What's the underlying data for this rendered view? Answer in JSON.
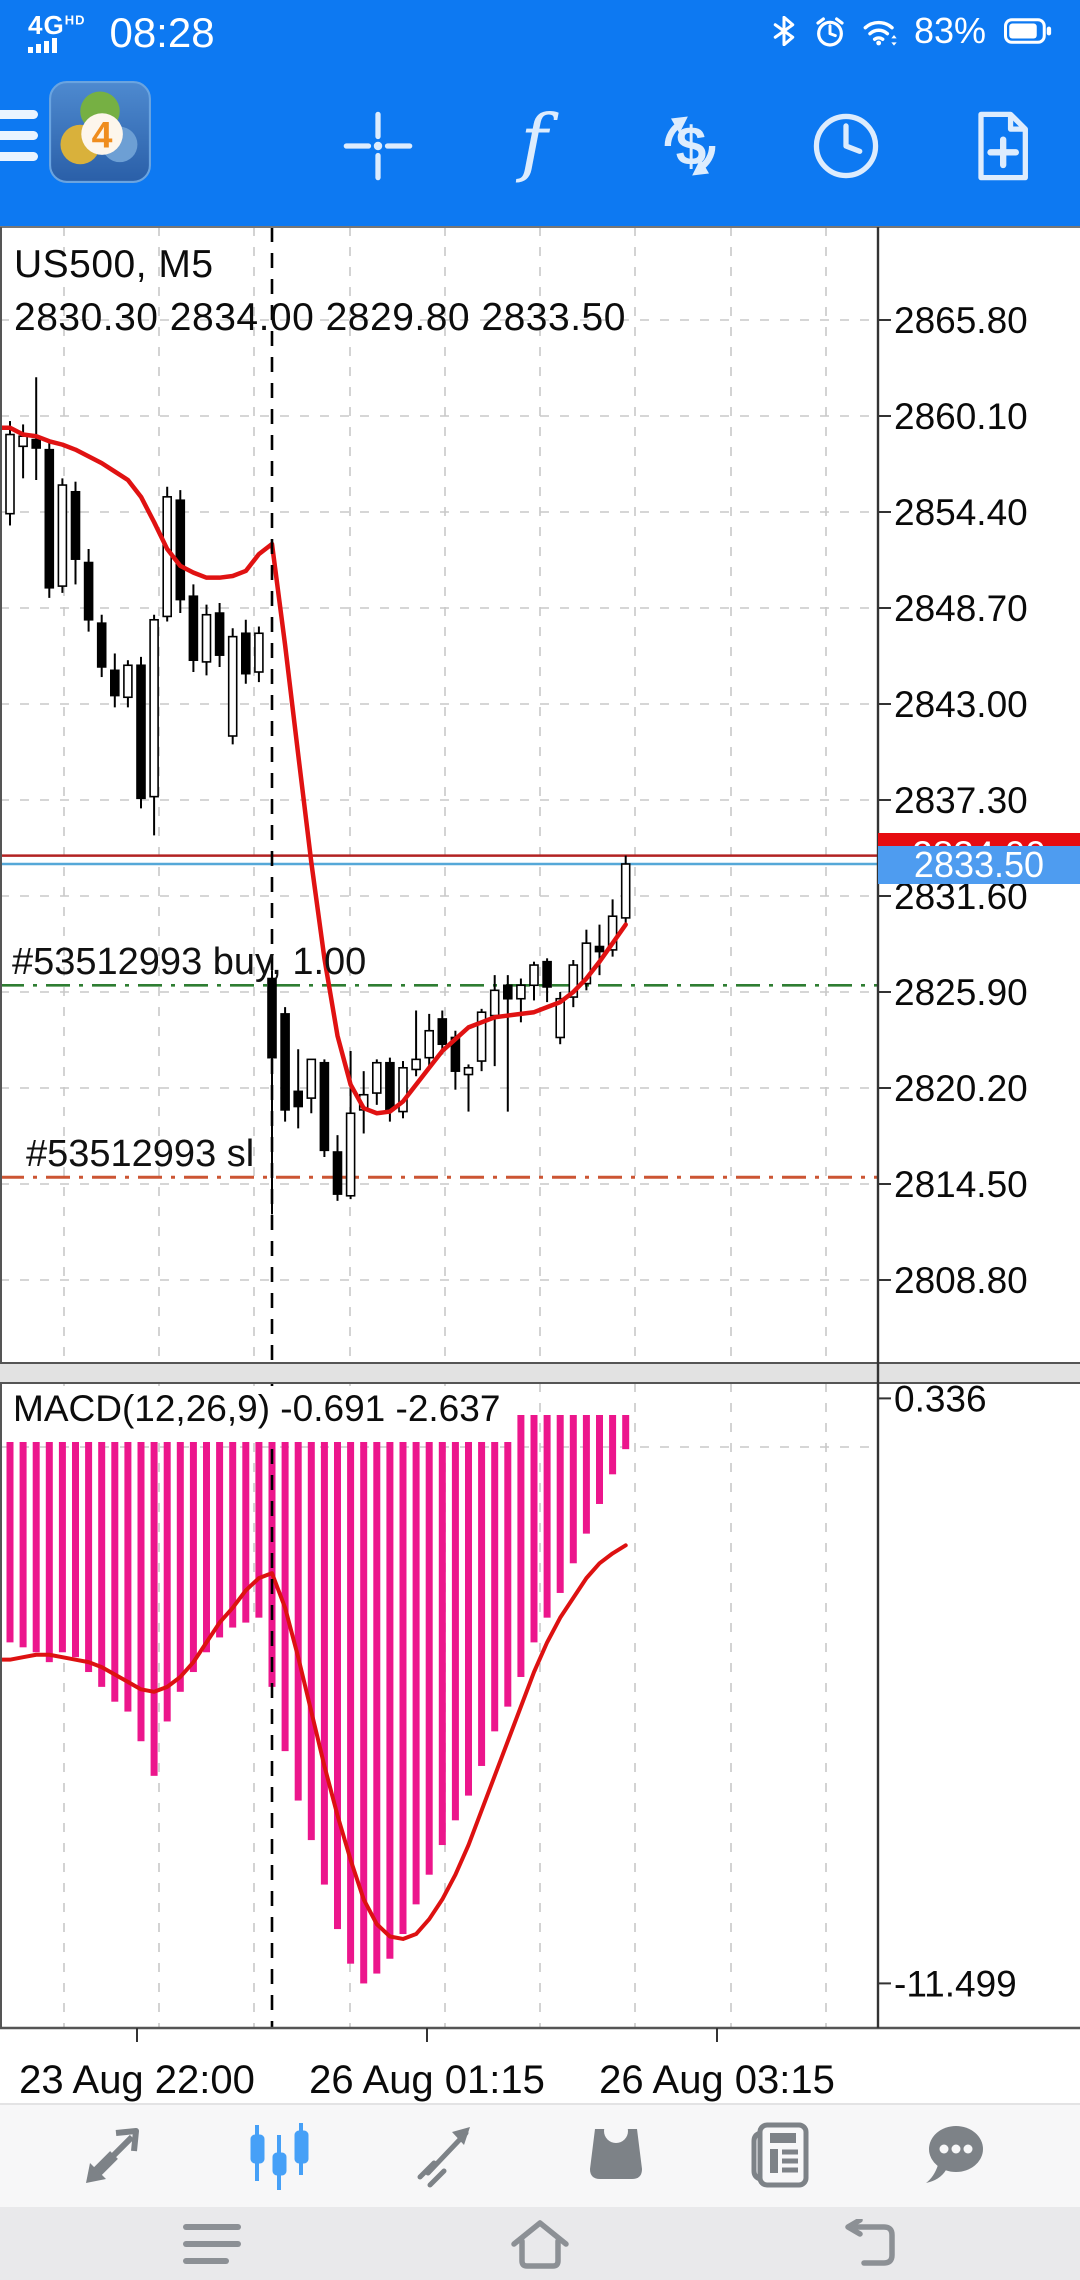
{
  "status_bar": {
    "network": "4G",
    "network_badge": "HD",
    "time": "08:28",
    "battery_pct": "83%",
    "icons": [
      "signal-icon",
      "bluetooth-icon",
      "alarm-icon",
      "wifi-icon",
      "battery-icon"
    ]
  },
  "app_toolbar": {
    "icons": [
      "menu-icon",
      "mt4-logo",
      "crosshair-icon",
      "indicators-icon",
      "trade-symbols-icon",
      "timeframes-icon",
      "new-order-icon"
    ]
  },
  "chart_header": {
    "symbol": "US500, M5",
    "ohlc": "2830.30 2834.00 2829.80 2833.50"
  },
  "price_tags": {
    "ask": "2834.00",
    "bid": "2833.50"
  },
  "trade_lines": {
    "buy_label": "#53512993 buy, 1.00",
    "sl_label": "#53512993 sl"
  },
  "macd_header": "MACD(12,26,9) -0.691 -2.637",
  "time_axis": [
    "23 Aug 22:00",
    "26 Aug 01:15",
    "26 Aug 03:15"
  ],
  "bottom_toolbar": {
    "icons": [
      "quotes-icon",
      "charts-icon",
      "trade-icon",
      "history-icon",
      "news-icon",
      "messages-icon"
    ],
    "active": "charts-icon"
  },
  "nav_bar": {
    "icons": [
      "recents-icon",
      "home-icon",
      "back-icon"
    ]
  },
  "colors": {
    "accent_blue": "#0d79f2",
    "icon_white": "#e8f3fe",
    "bear": "#000000",
    "bull": "#ffffff",
    "ma_red": "#e01212",
    "macd_bar": "#ec168c",
    "macd_signal": "#dd1111",
    "bid_line": "#55a8d8",
    "ask_line": "#b22222",
    "buy_line": "#2e7d32",
    "sl_line": "#cc5533",
    "bid_tag": "#4e9cf0",
    "ask_tag": "#e60c10",
    "grid": "#c8c8c8",
    "active_icon": "#46a0f7",
    "gray_icon": "#7d8287",
    "nav_icon": "#8c9095"
  },
  "chart_data": [
    {
      "type": "candlestick",
      "symbol": "US500",
      "timeframe": "M5",
      "title": "US500, M5",
      "last_ohlc": {
        "open": 2830.3,
        "high": 2834.0,
        "low": 2829.8,
        "close": 2833.5
      },
      "bid": 2833.5,
      "ask": 2834.0,
      "buy_line_price": 2826.3,
      "sl_line_price": 2814.9,
      "price_ticks": [
        2865.8,
        2860.1,
        2854.4,
        2848.7,
        2843.0,
        2837.3,
        2831.6,
        2825.9,
        2820.2,
        2814.5,
        2808.8
      ],
      "ylim": [
        2803.9,
        2871.3
      ],
      "candles": [
        [
          2854.3,
          2859.8,
          2853.6,
          2859.0
        ],
        [
          2858.3,
          2859.6,
          2856.4,
          2858.9
        ],
        [
          2858.7,
          2862.4,
          2856.3,
          2858.2
        ],
        [
          2858.1,
          2858.6,
          2849.3,
          2849.9
        ],
        [
          2850.0,
          2856.4,
          2849.6,
          2856.0
        ],
        [
          2855.6,
          2856.2,
          2850.1,
          2851.6
        ],
        [
          2851.4,
          2852.2,
          2847.3,
          2848.0
        ],
        [
          2847.8,
          2848.3,
          2844.6,
          2845.2
        ],
        [
          2845.0,
          2846.0,
          2842.8,
          2843.5
        ],
        [
          2843.4,
          2845.6,
          2842.8,
          2845.3
        ],
        [
          2845.3,
          2845.8,
          2836.8,
          2837.4
        ],
        [
          2837.5,
          2848.3,
          2835.2,
          2848.0
        ],
        [
          2848.2,
          2855.9,
          2847.9,
          2855.3
        ],
        [
          2855.1,
          2855.7,
          2848.4,
          2849.2
        ],
        [
          2849.4,
          2850.1,
          2844.9,
          2845.6
        ],
        [
          2845.5,
          2848.9,
          2844.7,
          2848.3
        ],
        [
          2848.4,
          2849.0,
          2845.2,
          2845.9
        ],
        [
          2841.1,
          2847.5,
          2840.6,
          2847.0
        ],
        [
          2847.2,
          2848.0,
          2844.2,
          2844.8
        ],
        [
          2844.9,
          2847.6,
          2844.3,
          2847.2
        ],
        [
          2826.7,
          2827.2,
          2812.7,
          2822.0
        ],
        [
          2824.6,
          2825.0,
          2818.2,
          2818.9
        ],
        [
          2820.0,
          2822.5,
          2817.8,
          2819.1
        ],
        [
          2819.6,
          2821.9,
          2818.7,
          2821.9
        ],
        [
          2821.7,
          2821.9,
          2816.1,
          2816.5
        ],
        [
          2816.4,
          2817.4,
          2813.5,
          2813.9
        ],
        [
          2813.8,
          2822.4,
          2813.6,
          2818.7
        ],
        [
          2818.9,
          2821.2,
          2817.5,
          2819.8
        ],
        [
          2819.9,
          2821.9,
          2819.2,
          2821.7
        ],
        [
          2821.7,
          2822.0,
          2818.2,
          2818.9
        ],
        [
          2818.8,
          2821.8,
          2818.4,
          2821.4
        ],
        [
          2821.3,
          2824.8,
          2820.9,
          2821.9
        ],
        [
          2822.0,
          2824.6,
          2821.4,
          2823.6
        ],
        [
          2824.3,
          2824.8,
          2822.2,
          2822.8
        ],
        [
          2823.2,
          2823.6,
          2820.1,
          2821.2
        ],
        [
          2821.0,
          2821.6,
          2818.8,
          2821.4
        ],
        [
          2821.8,
          2824.9,
          2821.2,
          2824.7
        ],
        [
          2824.5,
          2826.9,
          2821.5,
          2826.0
        ],
        [
          2826.3,
          2826.9,
          2818.8,
          2825.5
        ],
        [
          2825.5,
          2826.7,
          2824.1,
          2826.3
        ],
        [
          2826.3,
          2827.7,
          2825.4,
          2827.5
        ],
        [
          2827.7,
          2827.9,
          2825.3,
          2826.2
        ],
        [
          2823.2,
          2825.9,
          2822.8,
          2825.5
        ],
        [
          2825.6,
          2827.8,
          2825.0,
          2827.5
        ],
        [
          2826.4,
          2829.6,
          2826.0,
          2828.8
        ],
        [
          2828.6,
          2829.9,
          2826.9,
          2828.3
        ],
        [
          2828.4,
          2831.4,
          2828.0,
          2830.4
        ],
        [
          2830.3,
          2834.0,
          2829.8,
          2833.5
        ]
      ],
      "ma": [
        2859.4,
        2859.0,
        2858.9,
        2858.6,
        2858.4,
        2858.1,
        2857.7,
        2857.3,
        2856.8,
        2856.3,
        2855.3,
        2853.8,
        2852.2,
        2851.2,
        2850.8,
        2850.5,
        2850.5,
        2850.6,
        2850.9,
        2851.9,
        2852.5,
        2846.5,
        2840.0,
        2833.6,
        2827.9,
        2823.3,
        2820.4,
        2819.0,
        2818.7,
        2818.8,
        2819.4,
        2820.4,
        2821.4,
        2822.4,
        2823.1,
        2823.8,
        2824.1,
        2824.4,
        2824.5,
        2824.6,
        2824.7,
        2825.0,
        2825.3,
        2825.9,
        2826.7,
        2827.7,
        2828.8,
        2829.9
      ]
    },
    {
      "type": "bar",
      "name": "MACD",
      "title": "MACD(12,26,9) -0.691 -2.637",
      "params": "12,26,9",
      "value": -0.691,
      "signal_value": -2.637,
      "scale_max": 0.336,
      "scale_min": -11.499,
      "histogram": [
        -4.6,
        -4.7,
        -4.8,
        -5.0,
        -4.8,
        -4.9,
        -5.2,
        -5.5,
        -5.8,
        -6.0,
        -6.6,
        -7.3,
        -6.2,
        -5.6,
        -5.2,
        -4.8,
        -4.5,
        -4.3,
        -4.2,
        -4.1,
        -5.5,
        -6.8,
        -7.8,
        -8.6,
        -9.5,
        -10.4,
        -11.1,
        -11.5,
        -11.3,
        -11.0,
        -10.5,
        -9.9,
        -9.3,
        -8.7,
        -8.2,
        -7.7,
        -7.1,
        -6.4,
        -5.9,
        -5.3,
        -4.6,
        -4.1,
        -3.6,
        -3.0,
        -2.4,
        -1.8,
        -1.2,
        -0.691
      ],
      "signal": [
        -4.95,
        -4.9,
        -4.85,
        -4.85,
        -4.9,
        -4.95,
        -5.0,
        -5.1,
        -5.25,
        -5.4,
        -5.55,
        -5.6,
        -5.5,
        -5.3,
        -5.0,
        -4.6,
        -4.2,
        -3.9,
        -3.55,
        -3.3,
        -3.2,
        -3.9,
        -4.9,
        -6.0,
        -7.1,
        -8.1,
        -9.0,
        -9.8,
        -10.3,
        -10.55,
        -10.6,
        -10.5,
        -10.2,
        -9.8,
        -9.3,
        -8.7,
        -8.0,
        -7.3,
        -6.6,
        -5.9,
        -5.2,
        -4.6,
        -4.1,
        -3.7,
        -3.3,
        -3.0,
        -2.8,
        -2.637
      ]
    }
  ]
}
